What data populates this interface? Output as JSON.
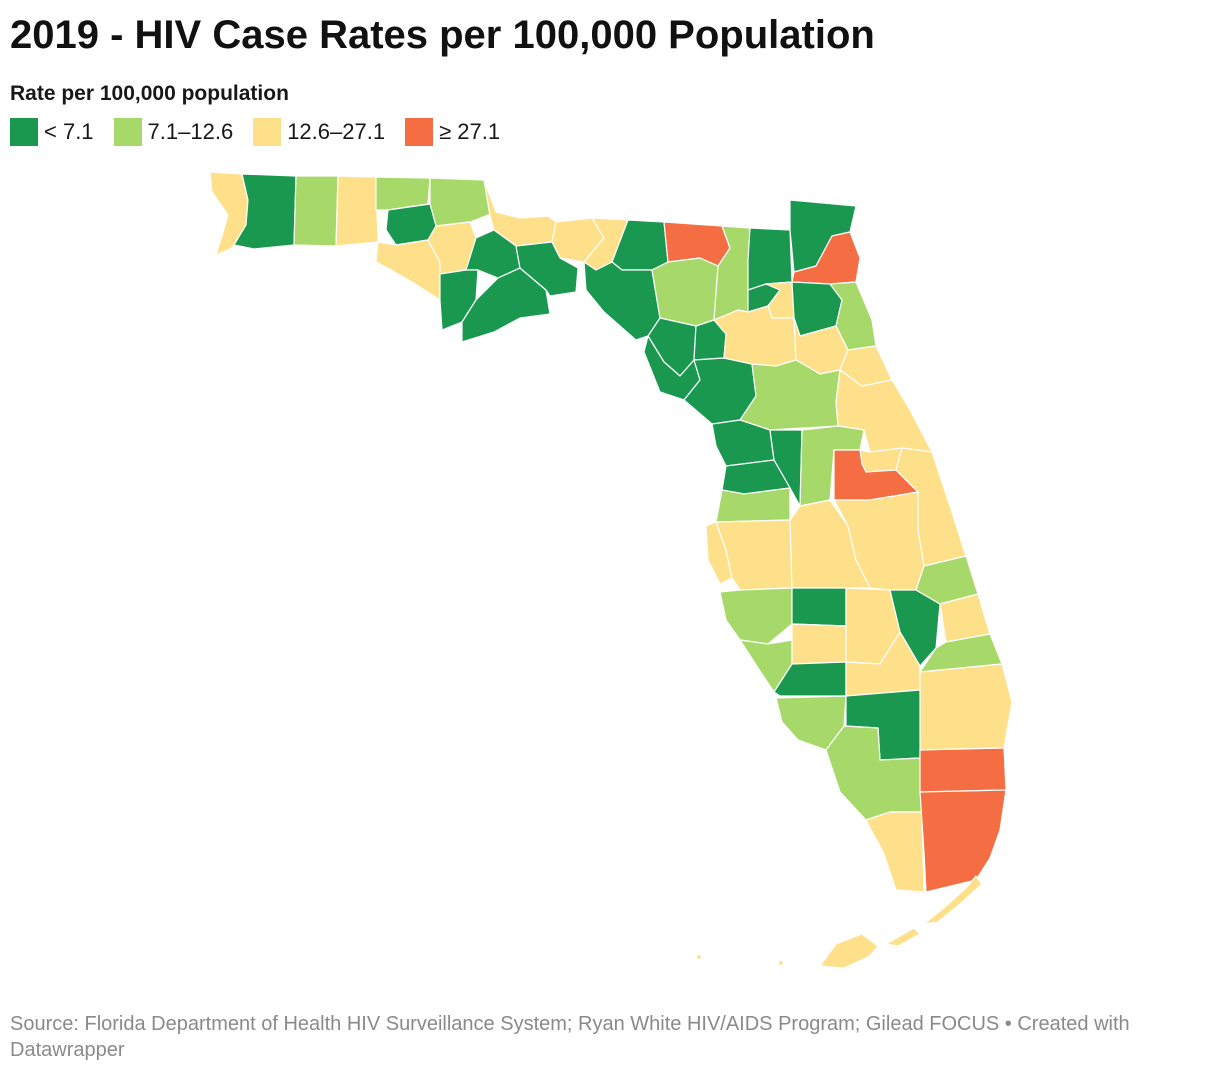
{
  "header": {
    "title": "2019 - HIV Case Rates per 100,000 Population",
    "legend_title": "Rate per 100,000 population"
  },
  "legend": [
    {
      "label": "< 7.1",
      "color": "#1a9850"
    },
    {
      "label": "7.1–12.6",
      "color": "#a6d96a"
    },
    {
      "label": "12.6–27.1",
      "color": "#fee08b"
    },
    {
      "label": "≥ 27.1",
      "color": "#f46d43"
    }
  ],
  "map": {
    "region": "Florida counties",
    "classes": {
      "low": "#1a9850",
      "mid_low": "#a6d96a",
      "mid_high": "#fee08b",
      "high": "#f46d43"
    }
  },
  "footer": {
    "source": "Source: Florida Department of Health HIV Surveillance System; Ryan White HIV/AIDS Program; Gilead FOCUS • Created with Datawrapper"
  }
}
